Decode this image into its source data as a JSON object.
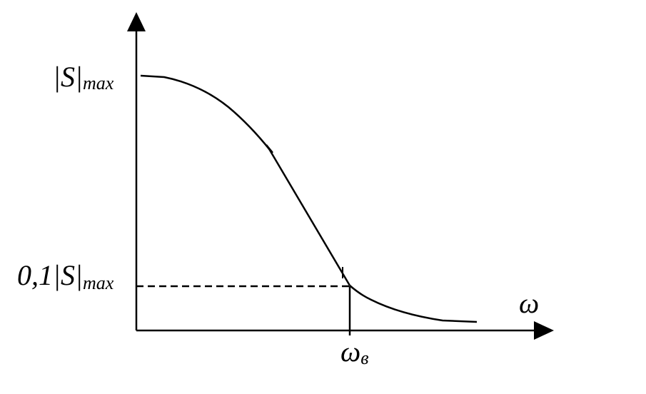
{
  "labels": {
    "y_max": {
      "main": "|S|",
      "sub": "max"
    },
    "y_tenth": {
      "main": "0,1|S|",
      "sub": "max"
    },
    "x_axis": "ω",
    "cutoff": {
      "main": "ω",
      "sub": "в"
    }
  }
}
